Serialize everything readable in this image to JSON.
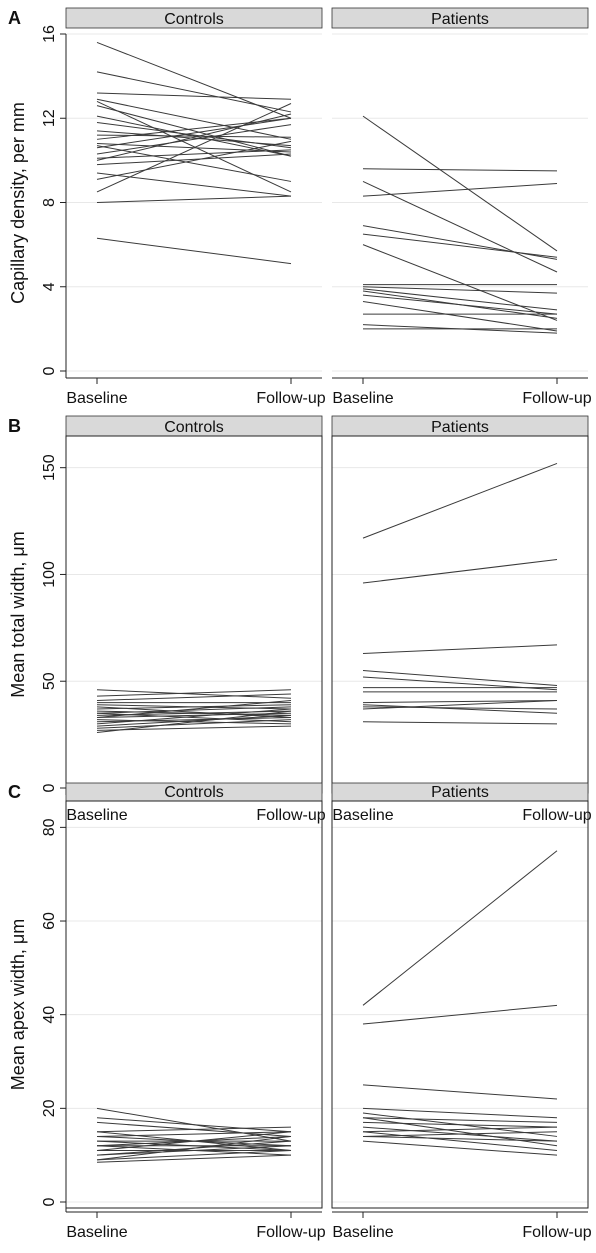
{
  "chart_data": [
    {
      "panel_label": "A",
      "type": "line",
      "ylabel": "Capillary density, per mm",
      "ylim": [
        0,
        16
      ],
      "yticks": [
        0,
        4,
        8,
        12,
        16
      ],
      "categories": [
        "Baseline",
        "Follow-up"
      ],
      "frame": false,
      "grid": true,
      "facets": [
        {
          "label": "Controls",
          "series": [
            [
              15.6,
              12.0
            ],
            [
              14.2,
              12.3
            ],
            [
              13.2,
              12.9
            ],
            [
              12.9,
              11.0
            ],
            [
              12.8,
              8.5
            ],
            [
              12.6,
              10.2
            ],
            [
              12.1,
              10.2
            ],
            [
              11.8,
              10.6
            ],
            [
              11.4,
              10.7
            ],
            [
              11.2,
              11.1
            ],
            [
              11.0,
              12.0
            ],
            [
              10.8,
              10.4
            ],
            [
              10.7,
              9.0
            ],
            [
              10.6,
              12.0
            ],
            [
              10.3,
              11.7
            ],
            [
              10.1,
              10.5
            ],
            [
              10.0,
              12.2
            ],
            [
              9.8,
              10.3
            ],
            [
              9.4,
              8.3
            ],
            [
              9.1,
              10.9
            ],
            [
              8.5,
              12.7
            ],
            [
              8.0,
              8.3
            ],
            [
              6.3,
              5.1
            ]
          ]
        },
        {
          "label": "Patients",
          "series": [
            [
              12.1,
              5.7
            ],
            [
              9.6,
              9.5
            ],
            [
              9.0,
              4.7
            ],
            [
              8.3,
              8.9
            ],
            [
              6.9,
              5.3
            ],
            [
              6.5,
              5.4
            ],
            [
              6.0,
              2.4
            ],
            [
              4.1,
              4.1
            ],
            [
              4.0,
              3.7
            ],
            [
              3.9,
              2.9
            ],
            [
              3.8,
              2.5
            ],
            [
              3.6,
              2.7
            ],
            [
              3.3,
              1.9
            ],
            [
              2.7,
              2.7
            ],
            [
              2.2,
              1.8
            ],
            [
              2.0,
              2.0
            ]
          ]
        }
      ]
    },
    {
      "panel_label": "B",
      "type": "line",
      "ylabel": "Mean total width, μm",
      "ylim": [
        0,
        155
      ],
      "yticks": [
        0,
        50,
        100,
        150
      ],
      "categories": [
        "Baseline",
        "Follow-up"
      ],
      "frame": true,
      "grid": true,
      "facets": [
        {
          "label": "Controls",
          "series": [
            [
              46,
              42
            ],
            [
              43,
              46
            ],
            [
              41,
              44
            ],
            [
              40,
              40
            ],
            [
              39,
              37
            ],
            [
              38,
              33
            ],
            [
              37,
              39
            ],
            [
              36,
              34
            ],
            [
              35,
              38
            ],
            [
              35,
              31
            ],
            [
              34,
              36
            ],
            [
              33,
              35
            ],
            [
              33,
              41
            ],
            [
              32,
              30
            ],
            [
              31,
              33
            ],
            [
              30,
              37
            ],
            [
              29,
              34
            ],
            [
              28,
              32
            ],
            [
              27,
              29
            ],
            [
              26,
              36
            ]
          ]
        },
        {
          "label": "Patients",
          "series": [
            [
              117,
              152
            ],
            [
              96,
              107
            ],
            [
              63,
              67
            ],
            [
              55,
              48
            ],
            [
              52,
              46
            ],
            [
              47,
              47
            ],
            [
              45,
              45
            ],
            [
              40,
              41
            ],
            [
              39,
              35
            ],
            [
              38,
              37
            ],
            [
              37,
              41
            ],
            [
              31,
              30
            ]
          ]
        }
      ]
    },
    {
      "panel_label": "C",
      "type": "line",
      "ylabel": "Mean apex width, μm",
      "ylim": [
        0,
        82
      ],
      "yticks": [
        0,
        20,
        40,
        60,
        80
      ],
      "categories": [
        "Baseline",
        "Follow-up"
      ],
      "frame": true,
      "grid": true,
      "facets": [
        {
          "label": "Controls",
          "series": [
            [
              20,
              13
            ],
            [
              18,
              15
            ],
            [
              17,
              14
            ],
            [
              15,
              16
            ],
            [
              15,
              11
            ],
            [
              14,
              15
            ],
            [
              14,
              12
            ],
            [
              13,
              13
            ],
            [
              13,
              11
            ],
            [
              12,
              14
            ],
            [
              12,
              10
            ],
            [
              12,
              12
            ],
            [
              11,
              15
            ],
            [
              11,
              11
            ],
            [
              10,
              13
            ],
            [
              10,
              12
            ],
            [
              9,
              14
            ],
            [
              9,
              11
            ],
            [
              8.5,
              10
            ]
          ]
        },
        {
          "label": "Patients",
          "series": [
            [
              42,
              75
            ],
            [
              38,
              42
            ],
            [
              25,
              22
            ],
            [
              20,
              18
            ],
            [
              19,
              14
            ],
            [
              18,
              17
            ],
            [
              18,
              12
            ],
            [
              17,
              16
            ],
            [
              16,
              13
            ],
            [
              15,
              16
            ],
            [
              15,
              11
            ],
            [
              14,
              15
            ],
            [
              14,
              13
            ],
            [
              13,
              10
            ]
          ]
        }
      ]
    }
  ]
}
